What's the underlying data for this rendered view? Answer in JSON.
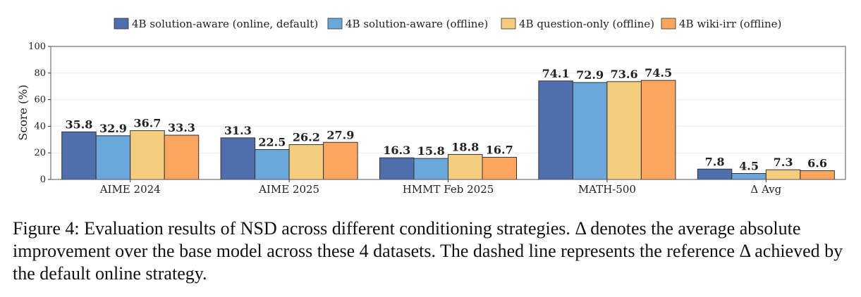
{
  "chart_data": {
    "type": "bar",
    "categories": [
      "AIME 2024",
      "AIME 2025",
      "HMMT Feb 2025",
      "MATH-500",
      "Δ Avg"
    ],
    "series": [
      {
        "name": "4B solution-aware (online, default)",
        "color": "#4e6eae",
        "values": [
          35.8,
          31.3,
          16.3,
          74.1,
          7.8
        ]
      },
      {
        "name": "4B solution-aware (offline)",
        "color": "#6aa8dc",
        "values": [
          32.9,
          22.5,
          15.8,
          72.9,
          4.5
        ]
      },
      {
        "name": "4B question-only (offline)",
        "color": "#f5cd7e",
        "values": [
          36.7,
          26.2,
          18.8,
          73.6,
          7.3
        ]
      },
      {
        "name": "4B wiki-irr (offline)",
        "color": "#fba55e",
        "values": [
          33.3,
          27.9,
          16.7,
          74.5,
          6.6
        ]
      }
    ],
    "value_labels": [
      [
        "35.8",
        "31.3",
        "16.3",
        "74.1",
        "7.8"
      ],
      [
        "32.9",
        "22.5",
        "15.8",
        "72.9",
        "4.5"
      ],
      [
        "36.7",
        "26.2",
        "18.8",
        "73.6",
        "7.3"
      ],
      [
        "33.3",
        "27.9",
        "16.7",
        "74.5",
        "6.6"
      ]
    ],
    "ylabel": "Score (%)",
    "ylim": [
      0,
      100
    ],
    "yticks": [
      0,
      20,
      40,
      60,
      80,
      100
    ],
    "grid": true,
    "legend_position": "top"
  },
  "caption": "Figure 4: Evaluation results of NSD across different conditioning strategies. Δ denotes the average absolute improvement over the base model across these 4 datasets. The dashed line represents the reference Δ achieved by the default online strategy."
}
